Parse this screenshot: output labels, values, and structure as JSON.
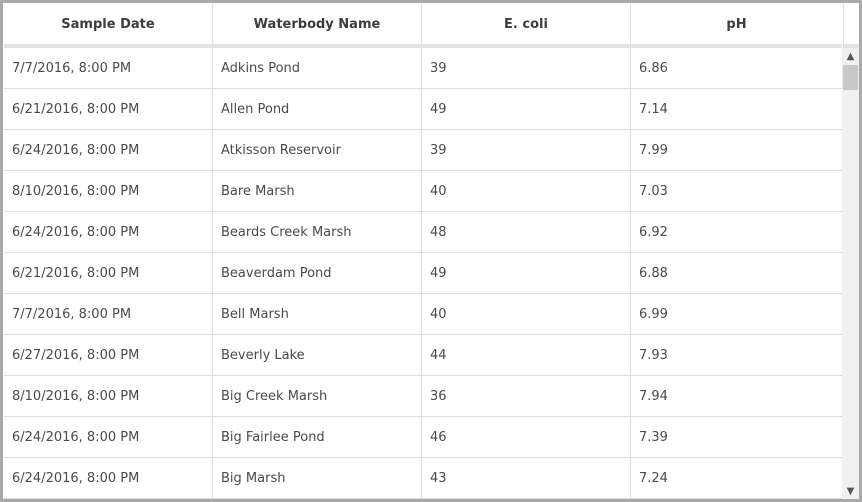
{
  "table": {
    "columns": [
      "Sample Date",
      "Waterbody Name",
      "E. coli",
      "pH"
    ],
    "rows": [
      [
        "7/7/2016, 8:00 PM",
        "Adkins Pond",
        "39",
        "6.86"
      ],
      [
        "6/21/2016, 8:00 PM",
        "Allen Pond",
        "49",
        "7.14"
      ],
      [
        "6/24/2016, 8:00 PM",
        "Atkisson Reservoir",
        "39",
        "7.99"
      ],
      [
        "8/10/2016, 8:00 PM",
        "Bare Marsh",
        "40",
        "7.03"
      ],
      [
        "6/24/2016, 8:00 PM",
        "Beards Creek Marsh",
        "48",
        "6.92"
      ],
      [
        "6/21/2016, 8:00 PM",
        "Beaverdam Pond",
        "49",
        "6.88"
      ],
      [
        "7/7/2016, 8:00 PM",
        "Bell Marsh",
        "40",
        "6.99"
      ],
      [
        "6/27/2016, 8:00 PM",
        "Beverly Lake",
        "44",
        "7.93"
      ],
      [
        "8/10/2016, 8:00 PM",
        "Big Creek Marsh",
        "36",
        "7.94"
      ],
      [
        "6/24/2016, 8:00 PM",
        "Big Fairlee Pond",
        "46",
        "7.39"
      ],
      [
        "6/24/2016, 8:00 PM",
        "Big Marsh",
        "43",
        "7.24"
      ]
    ]
  },
  "scrollbar": {
    "up_icon": "chevron-up-icon",
    "down_icon": "chevron-down-icon",
    "position_fraction": 0
  }
}
